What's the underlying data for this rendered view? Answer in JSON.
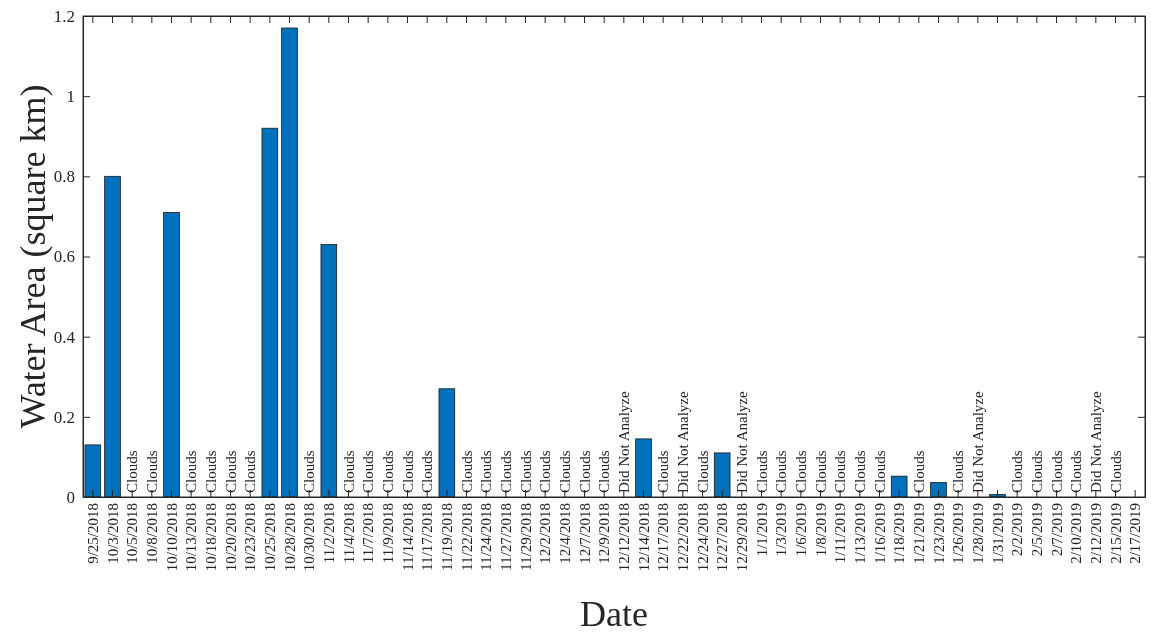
{
  "chart_data": {
    "type": "bar",
    "xlabel": "Date",
    "ylabel": "Water Area (square km)",
    "color": "#0072bd",
    "categories": [
      "9/25/2018",
      "10/3/2018",
      "10/5/2018",
      "10/8/2018",
      "10/10/2018",
      "10/13/2018",
      "10/18/2018",
      "10/20/2018",
      "10/23/2018",
      "10/25/2018",
      "10/28/2018",
      "10/30/2018",
      "11/2/2018",
      "11/4/2018",
      "11/7/2018",
      "11/9/2018",
      "11/14/2018",
      "11/17/2018",
      "11/19/2018",
      "11/22/2018",
      "11/24/2018",
      "11/27/2018",
      "11/29/2018",
      "12/2/2018",
      "12/4/2018",
      "12/7/2018",
      "12/9/2018",
      "12/12/2018",
      "12/14/2018",
      "12/17/2018",
      "12/22/2018",
      "12/24/2018",
      "12/27/2018",
      "12/29/2018",
      "1/1/2019",
      "1/3/2019",
      "1/6/2019",
      "1/8/2019",
      "1/11/2019",
      "1/13/2019",
      "1/16/2019",
      "1/18/2019",
      "1/21/2019",
      "1/23/2019",
      "1/26/2019",
      "1/28/2019",
      "1/31/2019",
      "2/2/2019",
      "2/5/2019",
      "2/7/2019",
      "2/10/2019",
      "2/12/2019",
      "2/15/2019",
      "2/17/2019"
    ],
    "values": [
      0.13,
      0.8,
      null,
      null,
      0.71,
      null,
      null,
      null,
      null,
      0.92,
      1.17,
      null,
      0.63,
      null,
      null,
      null,
      null,
      null,
      0.27,
      null,
      null,
      null,
      null,
      null,
      null,
      null,
      null,
      null,
      0.145,
      null,
      null,
      null,
      0.11,
      null,
      null,
      null,
      null,
      null,
      null,
      null,
      null,
      0.052,
      null,
      0.036,
      null,
      null,
      0.006,
      null,
      null,
      null,
      null,
      null,
      null,
      null
    ],
    "value_labels": [
      null,
      null,
      "Clouds",
      "Clouds",
      null,
      "Clouds",
      "Clouds",
      "Clouds",
      "Clouds",
      null,
      null,
      "Clouds",
      null,
      "Clouds",
      "Clouds",
      "Clouds",
      "Clouds",
      "Clouds",
      null,
      "Clouds",
      "Clouds",
      "Clouds",
      "Clouds",
      "Clouds",
      "Clouds",
      "Clouds",
      "Clouds",
      "Did Not Analyze",
      null,
      "Clouds",
      "Did Not Analyze",
      "Clouds",
      null,
      "Did Not Analyze",
      "Clouds",
      "Clouds",
      "Clouds",
      "Clouds",
      "Clouds",
      "Clouds",
      "Clouds",
      null,
      "Clouds",
      null,
      "Clouds",
      "Did Not Analyze",
      null,
      "Clouds",
      "Clouds",
      "Clouds",
      "Clouds",
      "Did Not Analyze",
      "Clouds",
      null
    ],
    "ylim": [
      0,
      1.2
    ],
    "yticks": [
      0,
      0.2,
      0.4,
      0.6,
      0.8,
      1,
      1.2
    ],
    "grid": false
  }
}
